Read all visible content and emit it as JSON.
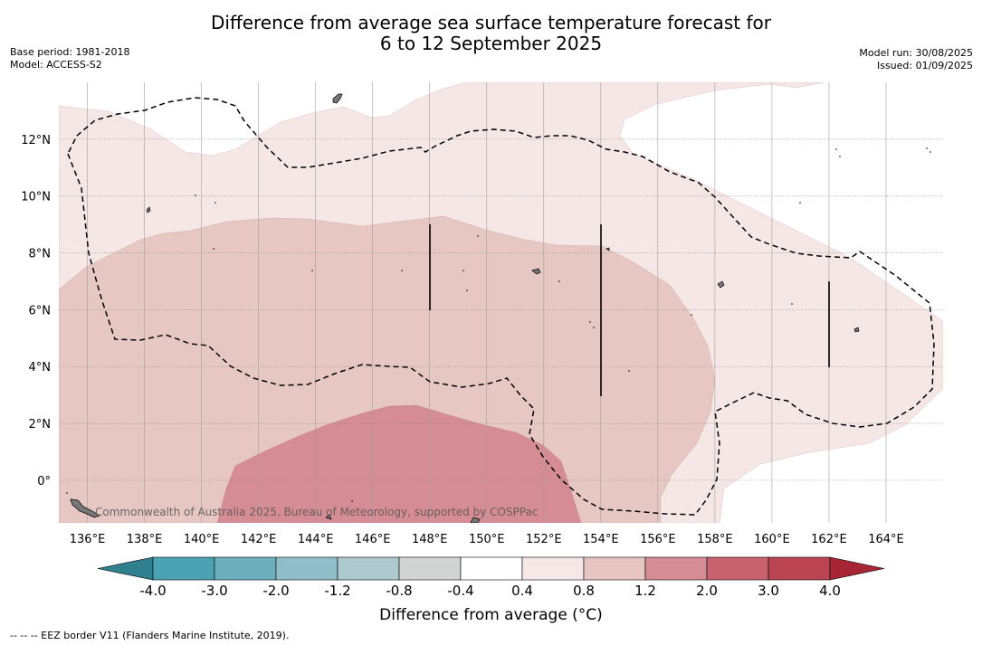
{
  "title_line1": "Difference from average sea surface temperature forecast for",
  "title_line2": "6 to 12 September 2025",
  "meta_left": [
    "Base period: 1981-2018",
    "Model: ACCESS-S2"
  ],
  "meta_right": [
    "Model run: 30/08/2025",
    "Issued: 01/09/2025"
  ],
  "map": {
    "lon_range": [
      135,
      166
    ],
    "lat_range": [
      -1.5,
      14
    ],
    "lon_labels": [
      "136°E",
      "138°E",
      "140°E",
      "142°E",
      "144°E",
      "146°E",
      "148°E",
      "150°E",
      "152°E",
      "154°E",
      "156°E",
      "158°E",
      "160°E",
      "162°E",
      "164°E"
    ],
    "lat_labels": [
      "0°",
      "2°N",
      "4°N",
      "6°N",
      "8°N",
      "10°N",
      "12°N"
    ],
    "gridlines": true,
    "watermark": "Commonwealth of Australia 2025, Bureau of Meteorology, supported by COSPPac",
    "eez_border_style": "dashed"
  },
  "colorbar": {
    "tick_labels": [
      "-4.0",
      "-3.0",
      "-2.0",
      "-1.2",
      "-0.8",
      "-0.4",
      "0.4",
      "0.8",
      "1.2",
      "2.0",
      "3.0",
      "4.0"
    ],
    "colors": [
      "#2f7f8e",
      "#4aa2b3",
      "#6dafbd",
      "#8fbec8",
      "#adc9cd",
      "#d1d4d3",
      "#ffffff",
      "#f5e8e7",
      "#e6c5c2",
      "#d68c95",
      "#c9626f",
      "#bb4453",
      "#a82536"
    ],
    "label": "Difference from average (°C)"
  },
  "footnote": "-- -- -- EEZ border V11 (Flanders Marine Institute, 2019)."
}
